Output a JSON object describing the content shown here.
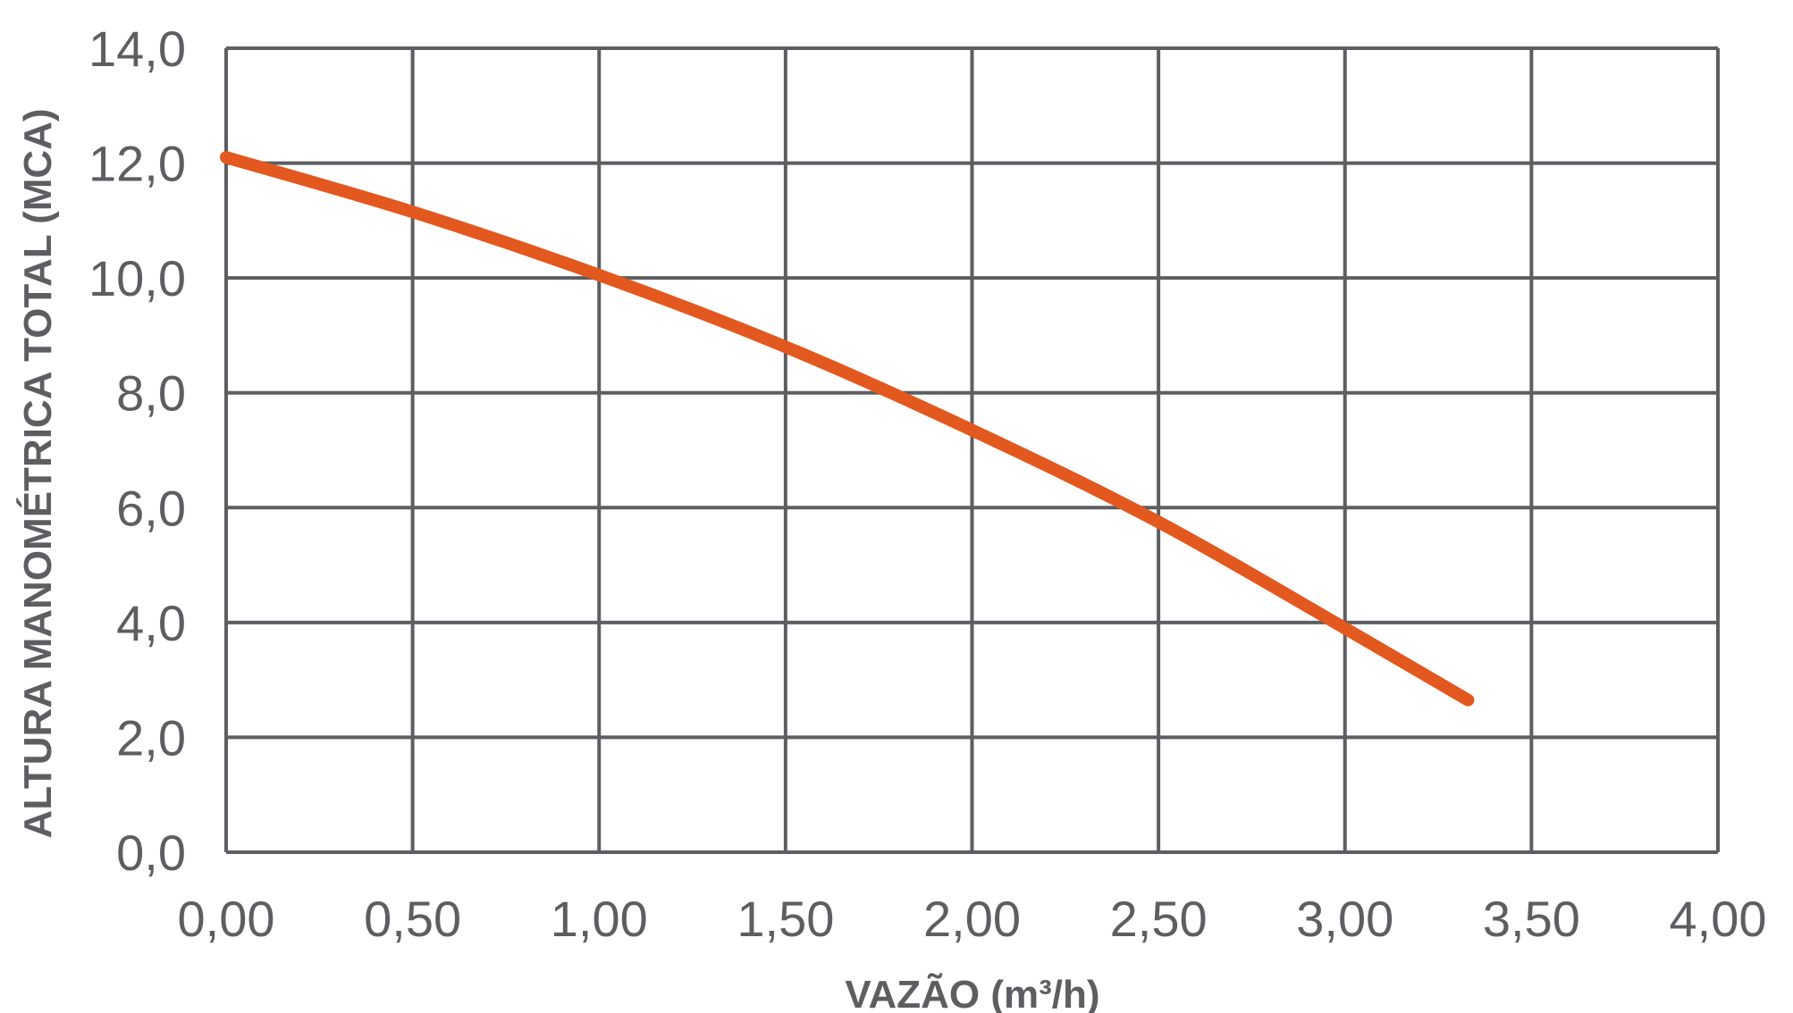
{
  "chart_data": {
    "type": "line",
    "xlabel": "VAZÃO (m³/h)",
    "ylabel": "ALTURA MANOMÉTRICA TOTAL (MCA)",
    "xlim": [
      0,
      4
    ],
    "ylim": [
      0,
      14
    ],
    "x_ticks": [
      0,
      0.5,
      1,
      1.5,
      2,
      2.5,
      3,
      3.5,
      4
    ],
    "x_tick_labels": [
      "0,00",
      "0,50",
      "1,00",
      "1,50",
      "2,00",
      "2,50",
      "3,00",
      "3,50",
      "4,00"
    ],
    "y_ticks": [
      0,
      2,
      4,
      6,
      8,
      10,
      12,
      14
    ],
    "y_tick_labels": [
      "0,0",
      "2,0",
      "4,0",
      "6,0",
      "8,0",
      "10,0",
      "12,0",
      "14,0"
    ],
    "grid": true,
    "series": [
      {
        "color": "#e2581f",
        "x": [
          0,
          0.5,
          1,
          1.5,
          2,
          2.5,
          3,
          3.33
        ],
        "y": [
          12.1,
          11.15,
          10.05,
          8.8,
          7.35,
          5.75,
          3.9,
          2.65
        ]
      }
    ],
    "grid_color": "#5d5e61",
    "text_color": "#5d5e61"
  }
}
